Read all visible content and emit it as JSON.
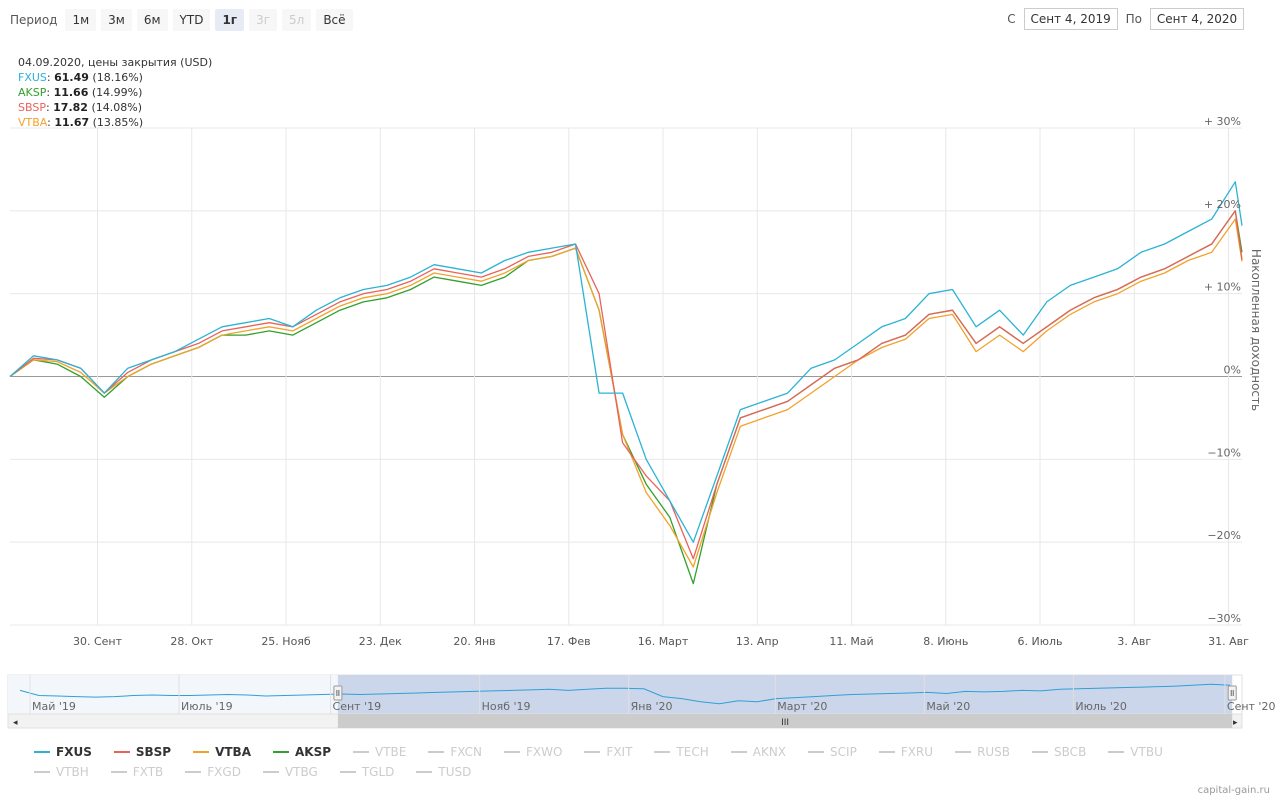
{
  "toolbar": {
    "period_label": "Период",
    "ranges": [
      {
        "label": "1м",
        "state": "normal"
      },
      {
        "label": "3м",
        "state": "normal"
      },
      {
        "label": "6м",
        "state": "normal"
      },
      {
        "label": "YTD",
        "state": "normal"
      },
      {
        "label": "1г",
        "state": "active"
      },
      {
        "label": "3г",
        "state": "disabled"
      },
      {
        "label": "5л",
        "state": "disabled"
      },
      {
        "label": "Всё",
        "state": "normal"
      }
    ],
    "from_label": "С",
    "from_value": "Сент 4, 2019",
    "to_label": "По",
    "to_value": "Сент 4, 2020"
  },
  "tooltip": {
    "date_line": "04.09.2020, цены закрытия (USD)",
    "rows": [
      {
        "ticker": "FXUS",
        "value": "61.49",
        "pct": "(18.16%)",
        "color": "#2bb3d4"
      },
      {
        "ticker": "AKSP",
        "value": "11.66",
        "pct": "(14.99%)",
        "color": "#33a02c"
      },
      {
        "ticker": "SBSP",
        "value": "17.82",
        "pct": "(14.08%)",
        "color": "#e8635a"
      },
      {
        "ticker": "VTBA",
        "value": "11.67",
        "pct": "(13.85%)",
        "color": "#f2a22c"
      }
    ]
  },
  "chart_data": {
    "type": "line",
    "ylabel": "Накопленная доходность",
    "ylim": [
      -30,
      30
    ],
    "y_ticks": [
      {
        "value": 30,
        "label": "+ 30%"
      },
      {
        "value": 20,
        "label": "+ 20%"
      },
      {
        "value": 10,
        "label": "+ 10%"
      },
      {
        "value": 0,
        "label": "0%"
      },
      {
        "value": -10,
        "label": "−10%"
      },
      {
        "value": -20,
        "label": "−20%"
      },
      {
        "value": -30,
        "label": "−30%"
      }
    ],
    "x_start": "2019-09-04",
    "x_end": "2020-09-04",
    "x_ticks": [
      {
        "date": "2019-09-30",
        "label": "30. Сент"
      },
      {
        "date": "2019-10-28",
        "label": "28. Окт"
      },
      {
        "date": "2019-11-25",
        "label": "25. Нояб"
      },
      {
        "date": "2019-12-23",
        "label": "23. Дек"
      },
      {
        "date": "2020-01-20",
        "label": "20. Янв"
      },
      {
        "date": "2020-02-17",
        "label": "17. Фев"
      },
      {
        "date": "2020-03-16",
        "label": "16. Март"
      },
      {
        "date": "2020-04-13",
        "label": "13. Апр"
      },
      {
        "date": "2020-05-11",
        "label": "11. Май"
      },
      {
        "date": "2020-06-08",
        "label": "8. Июнь"
      },
      {
        "date": "2020-07-06",
        "label": "6. Июль"
      },
      {
        "date": "2020-08-03",
        "label": "3. Авг"
      },
      {
        "date": "2020-08-31",
        "label": "31. Авг"
      }
    ],
    "dates": [
      "2019-09-04",
      "2019-09-11",
      "2019-09-18",
      "2019-09-25",
      "2019-10-02",
      "2019-10-09",
      "2019-10-16",
      "2019-10-23",
      "2019-10-30",
      "2019-11-06",
      "2019-11-13",
      "2019-11-20",
      "2019-11-27",
      "2019-12-04",
      "2019-12-11",
      "2019-12-18",
      "2019-12-25",
      "2020-01-01",
      "2020-01-08",
      "2020-01-15",
      "2020-01-22",
      "2020-01-29",
      "2020-02-05",
      "2020-02-12",
      "2020-02-19",
      "2020-02-26",
      "2020-03-04",
      "2020-03-11",
      "2020-03-18",
      "2020-03-25",
      "2020-04-01",
      "2020-04-08",
      "2020-04-15",
      "2020-04-22",
      "2020-04-29",
      "2020-05-06",
      "2020-05-13",
      "2020-05-20",
      "2020-05-27",
      "2020-06-03",
      "2020-06-10",
      "2020-06-17",
      "2020-06-24",
      "2020-07-01",
      "2020-07-08",
      "2020-07-15",
      "2020-07-22",
      "2020-07-29",
      "2020-08-05",
      "2020-08-12",
      "2020-08-19",
      "2020-08-26",
      "2020-09-02",
      "2020-09-04"
    ],
    "series": [
      {
        "name": "FXUS",
        "color": "#2bb3d4",
        "values": [
          0,
          2.5,
          2,
          1,
          -2,
          1,
          2,
          3,
          4.5,
          6,
          6.5,
          7,
          6,
          8,
          9.5,
          10.5,
          11,
          12,
          13.5,
          13,
          12.5,
          14,
          15,
          15.5,
          16,
          -2,
          -2,
          -10,
          -15,
          -20,
          -12,
          -4,
          -3,
          -2,
          1,
          2,
          4,
          6,
          7,
          10,
          10.5,
          6,
          8,
          5,
          9,
          11,
          12,
          13,
          15,
          16,
          17.5,
          19,
          23.5,
          18.2
        ]
      },
      {
        "name": "SBSP",
        "color": "#e8635a",
        "values": [
          0,
          2.2,
          2,
          1,
          -2,
          0.5,
          2,
          3,
          4,
          5.5,
          6,
          6.5,
          6,
          7.5,
          9,
          10,
          10.5,
          11.5,
          13,
          12.5,
          12,
          13,
          14.5,
          15,
          16,
          10,
          -8,
          -12,
          -15,
          -22,
          -13,
          -5,
          -4,
          -3,
          -1,
          1,
          2,
          4,
          5,
          7.5,
          8,
          4,
          6,
          4,
          6,
          8,
          9.5,
          10.5,
          12,
          13,
          14.5,
          16,
          20,
          14.1
        ]
      },
      {
        "name": "VTBA",
        "color": "#f2a22c",
        "values": [
          0,
          2,
          1.8,
          0.5,
          -2,
          0,
          1.5,
          2.5,
          3.5,
          5,
          5.5,
          6,
          5.5,
          7,
          8.5,
          9.5,
          10,
          11,
          12.5,
          12,
          11.5,
          12.5,
          14,
          14.5,
          15.5,
          8,
          -7,
          -14,
          -18,
          -23,
          -14,
          -6,
          -5,
          -4,
          -2,
          0,
          2,
          3.5,
          4.5,
          7,
          7.5,
          3,
          5,
          3,
          5.5,
          7.5,
          9,
          10,
          11.5,
          12.5,
          14,
          15,
          19,
          13.9
        ]
      },
      {
        "name": "AKSP",
        "color": "#33a02c",
        "values": [
          0,
          2,
          1.5,
          0,
          -2.5,
          0,
          1.5,
          2.5,
          3.5,
          5,
          5,
          5.5,
          5,
          6.5,
          8,
          9,
          9.5,
          10.5,
          12,
          11.5,
          11,
          12,
          14,
          14.5,
          15.5,
          8,
          -7,
          -13,
          -17,
          -25,
          -13,
          -5,
          -4,
          -3,
          -1,
          1,
          2,
          4,
          5,
          7.5,
          8,
          4,
          6,
          4,
          6,
          8,
          9.5,
          10.5,
          12,
          13,
          14.5,
          16,
          20,
          15.0
        ]
      }
    ],
    "hidden_series": [
      "VTBE",
      "FXCN",
      "FXWO",
      "FXIT",
      "TECH",
      "AKNX",
      "SCIP",
      "FXRU",
      "RUSB",
      "SBCB",
      "VTBU",
      "VTBH",
      "FXTB",
      "FXGD",
      "VTBG",
      "TGLD",
      "TUSD"
    ],
    "navigator": {
      "labels": [
        {
          "date": "2019-05-01",
          "label": "Май '19"
        },
        {
          "date": "2019-07-01",
          "label": "Июль '19"
        },
        {
          "date": "2019-09-01",
          "label": "Сент '19"
        },
        {
          "date": "2019-11-01",
          "label": "Нояб '19"
        },
        {
          "date": "2020-01-01",
          "label": "Янв '20"
        },
        {
          "date": "2020-03-01",
          "label": "Март '20"
        },
        {
          "date": "2020-05-01",
          "label": "Май '20"
        },
        {
          "date": "2020-07-01",
          "label": "Июль '20"
        },
        {
          "date": "2020-09-01",
          "label": "Сент '20"
        }
      ],
      "start": "2019-04-22",
      "end": "2020-09-08",
      "selected_start": "2019-09-04",
      "selected_end": "2020-09-04",
      "values": [
        9,
        4,
        3.5,
        3,
        2.5,
        3,
        4,
        4.5,
        4,
        4,
        4.5,
        5,
        4.5,
        3.5,
        4,
        4.5,
        5,
        5.5,
        5,
        5.5,
        6,
        6.5,
        7,
        7.5,
        8,
        8.5,
        9,
        9.5,
        10,
        9,
        10,
        11,
        11,
        10.5,
        3,
        1,
        -2,
        -4,
        -1,
        -2,
        1,
        2,
        3,
        4,
        5,
        5.5,
        6,
        6.5,
        7,
        6,
        8,
        7.5,
        8,
        9,
        8.5,
        10,
        10.5,
        11,
        11.5,
        12,
        12.5,
        13,
        14,
        15,
        14
      ]
    }
  },
  "credits": "capital-gain.ru"
}
